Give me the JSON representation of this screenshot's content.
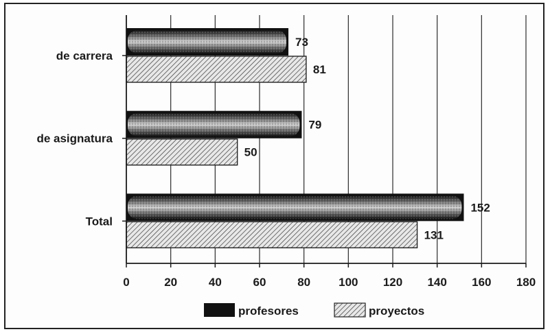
{
  "chart_data": {
    "type": "bar",
    "orientation": "horizontal",
    "categories": [
      "de carrera",
      "de asignatura",
      "Total"
    ],
    "series": [
      {
        "name": "profesores",
        "values": [
          73,
          79,
          152
        ],
        "labels": [
          "73",
          "79",
          "152"
        ],
        "pattern": "stipple"
      },
      {
        "name": "proyectos",
        "values": [
          81,
          50,
          131
        ],
        "labels": [
          "81",
          "50",
          "131"
        ],
        "pattern": "hatch"
      }
    ],
    "xlim": [
      0,
      180
    ],
    "x_ticks": [
      0,
      20,
      40,
      60,
      80,
      100,
      120,
      140,
      160,
      180
    ],
    "x_tick_labels": [
      "0",
      "20",
      "40",
      "60",
      "80",
      "100",
      "120",
      "140",
      "160",
      "180"
    ],
    "grid": "vertical",
    "legend": "bottom",
    "title": "",
    "xlabel": "",
    "ylabel": "",
    "colors": {
      "profesores": "#1a1a1a",
      "proyectos": "#bdbdbd",
      "axis": "#1a1a1a",
      "grid": "#2a2a2a"
    }
  }
}
